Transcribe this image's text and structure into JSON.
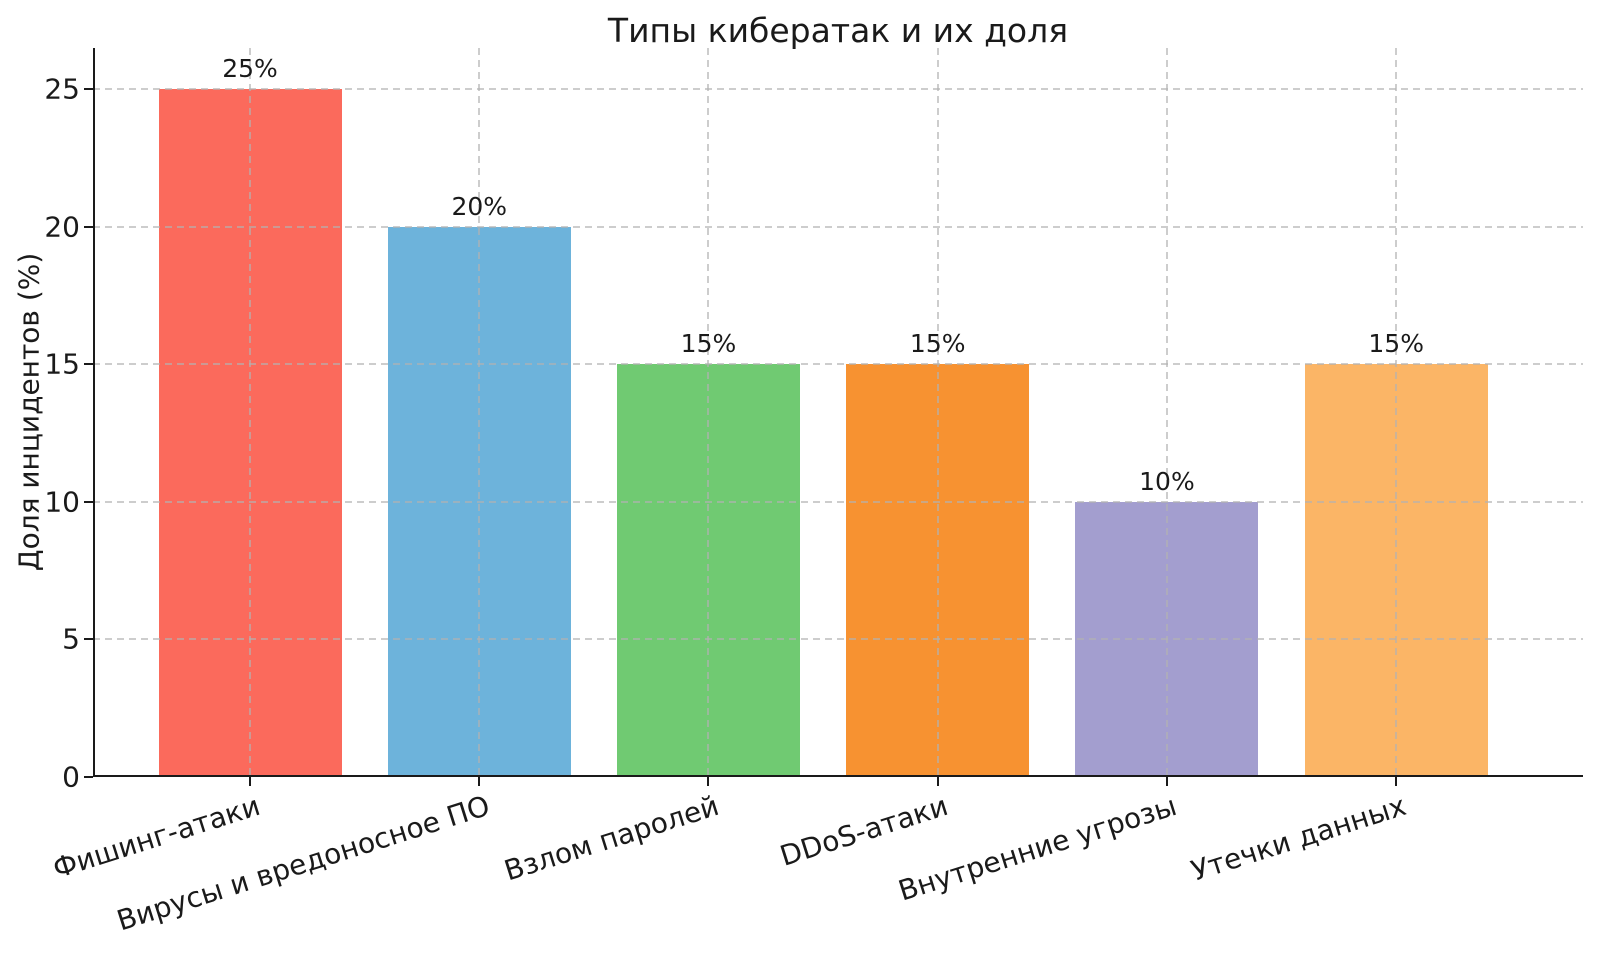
{
  "chart_data": {
    "type": "bar",
    "title": "Типы кибератак и их доля",
    "xlabel": "",
    "ylabel": "Доля инцидентов (%)",
    "categories": [
      "Фишинг-атаки",
      "Вирусы и вредоносное ПО",
      "Взлом паролей",
      "DDoS-атаки",
      "Внутренние угрозы",
      "Утечки данных"
    ],
    "values": [
      25,
      20,
      15,
      15,
      10,
      15
    ],
    "value_labels": [
      "25%",
      "20%",
      "15%",
      "15%",
      "10%",
      "15%"
    ],
    "bar_colors": [
      "#FB6A5C",
      "#6DB3DB",
      "#70CA72",
      "#F79231",
      "#A39ECF",
      "#FBB566"
    ],
    "ylim": [
      0,
      26.5
    ],
    "yticks": [
      0,
      5,
      10,
      15,
      20,
      25
    ],
    "ytick_labels": [
      "0",
      "5",
      "10",
      "15",
      "20",
      "25"
    ],
    "grid": "dashed, horizontal and vertical, drawn above bars",
    "legend": "none",
    "xtick_rotation_deg": 17.5,
    "colors": {
      "background": "#ffffff",
      "text": "#1a1a1a",
      "spine": "#1a1a1a",
      "gridline": "#c8c8c8"
    }
  }
}
